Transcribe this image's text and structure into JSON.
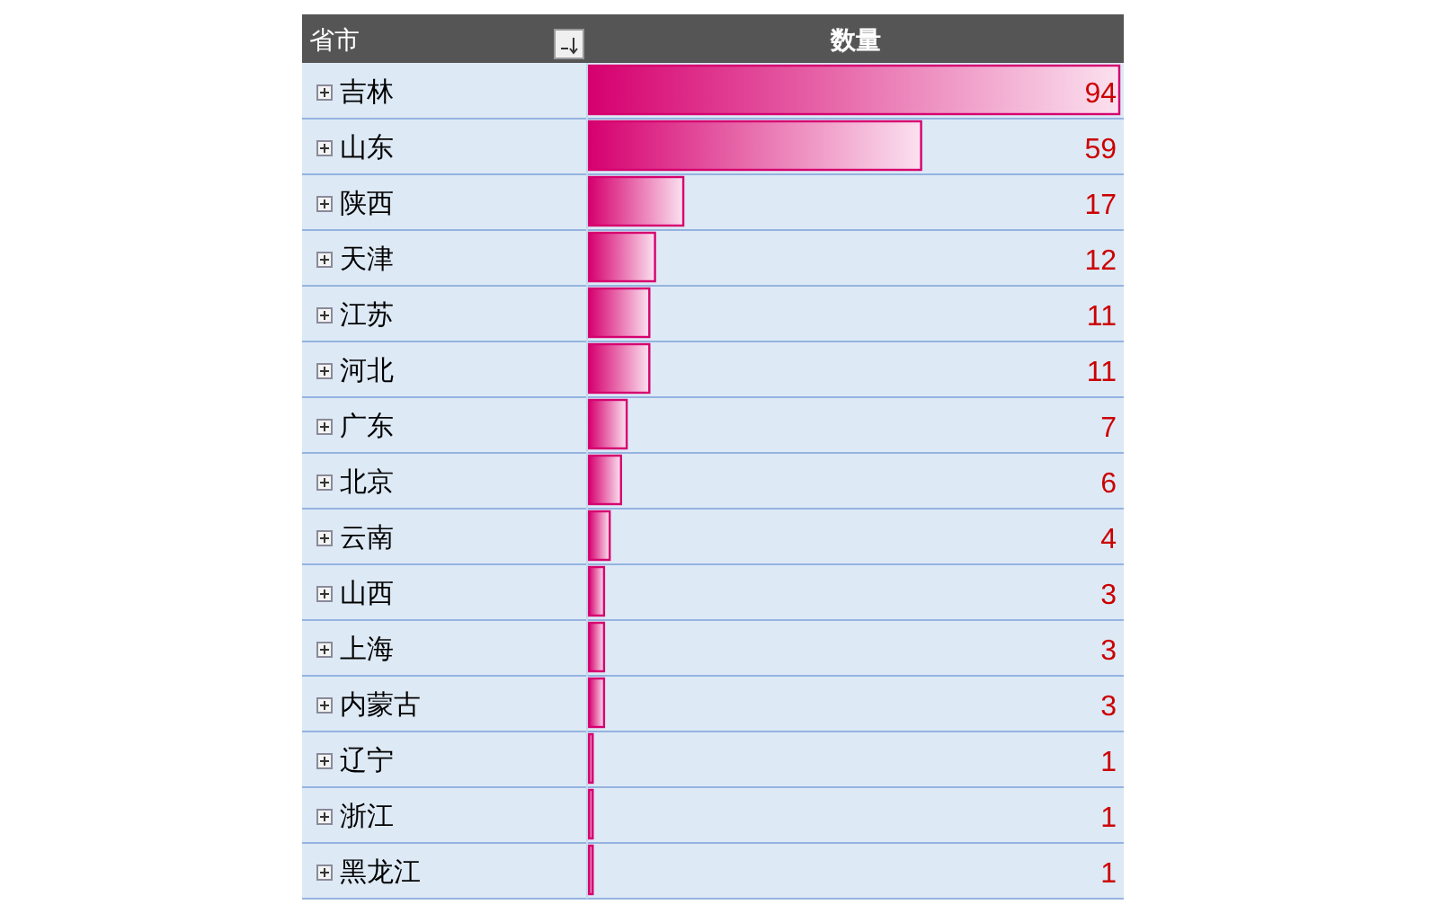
{
  "chart_data": {
    "type": "bar",
    "orientation": "horizontal",
    "ylabel": "省市",
    "xlabel": "数量",
    "categories": [
      "吉林",
      "山东",
      "陕西",
      "天津",
      "江苏",
      "河北",
      "广东",
      "北京",
      "云南",
      "山西",
      "上海",
      "内蒙古",
      "辽宁",
      "浙江",
      "黑龙江"
    ],
    "values": [
      94,
      59,
      17,
      12,
      11,
      11,
      7,
      6,
      4,
      3,
      3,
      3,
      1,
      1,
      1
    ],
    "color": "#d6006f",
    "data_labels": true
  }
}
